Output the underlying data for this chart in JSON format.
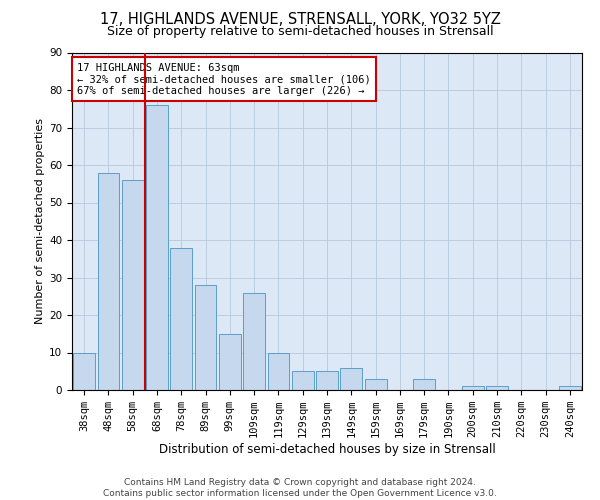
{
  "title": "17, HIGHLANDS AVENUE, STRENSALL, YORK, YO32 5YZ",
  "subtitle": "Size of property relative to semi-detached houses in Strensall",
  "xlabel": "Distribution of semi-detached houses by size in Strensall",
  "ylabel": "Number of semi-detached properties",
  "categories": [
    "38sqm",
    "48sqm",
    "58sqm",
    "68sqm",
    "78sqm",
    "89sqm",
    "99sqm",
    "109sqm",
    "119sqm",
    "129sqm",
    "139sqm",
    "149sqm",
    "159sqm",
    "169sqm",
    "179sqm",
    "190sqm",
    "200sqm",
    "210sqm",
    "220sqm",
    "230sqm",
    "240sqm"
  ],
  "values": [
    10,
    58,
    56,
    76,
    38,
    28,
    15,
    26,
    10,
    5,
    5,
    6,
    3,
    0,
    3,
    0,
    1,
    1,
    0,
    0,
    1
  ],
  "bar_color": "#c5d8ed",
  "bar_edge_color": "#5a9ec8",
  "red_line_color": "#cc0000",
  "annotation_text": "17 HIGHLANDS AVENUE: 63sqm\n← 32% of semi-detached houses are smaller (106)\n67% of semi-detached houses are larger (226) →",
  "annotation_box_color": "#cc0000",
  "footer_text": "Contains HM Land Registry data © Crown copyright and database right 2024.\nContains public sector information licensed under the Open Government Licence v3.0.",
  "ylim": [
    0,
    90
  ],
  "yticks": [
    0,
    10,
    20,
    30,
    40,
    50,
    60,
    70,
    80,
    90
  ],
  "title_fontsize": 10.5,
  "subtitle_fontsize": 9,
  "xlabel_fontsize": 8.5,
  "ylabel_fontsize": 8,
  "tick_fontsize": 7.5,
  "annotation_fontsize": 7.5,
  "footer_fontsize": 6.5,
  "background_color": "#ffffff",
  "plot_bg_color": "#dce8f5",
  "grid_color": "#b8c8dc"
}
